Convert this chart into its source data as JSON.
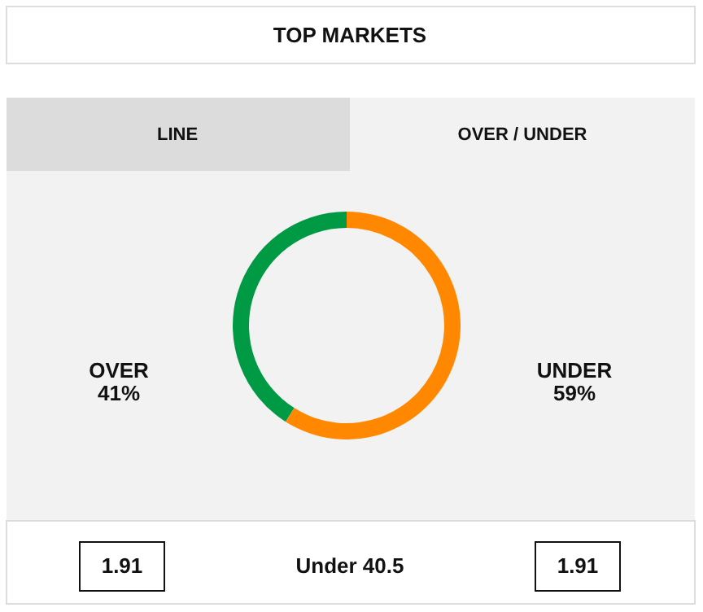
{
  "chart_data": {
    "type": "donut",
    "title": "TOP MARKETS",
    "categories": [
      "OVER",
      "UNDER"
    ],
    "values": [
      41,
      59
    ],
    "colors": [
      "#009a44",
      "#ff8800"
    ],
    "value_labels": [
      "41%",
      "59%"
    ],
    "annotations": [
      "LINE",
      "OVER / UNDER",
      "1.91",
      "Under 40.5",
      "1.91"
    ]
  }
}
